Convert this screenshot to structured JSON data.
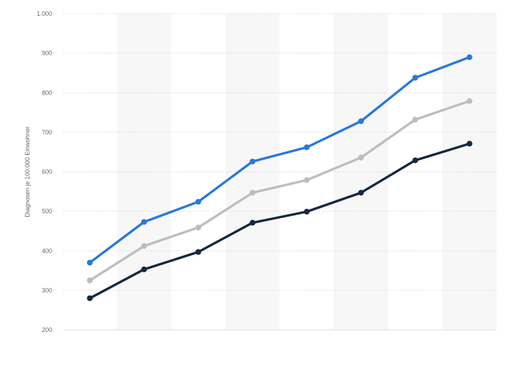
{
  "chart_data": {
    "type": "line",
    "ylabel": "Diagnosen je 100.000 Einwohner",
    "ylim": [
      200,
      1000
    ],
    "yticks": [
      200,
      300,
      400,
      500,
      600,
      700,
      800,
      900,
      1000
    ],
    "ytick_labels": [
      "200",
      "300",
      "400",
      "500",
      "600",
      "700",
      "800",
      "900",
      "1.000"
    ],
    "grid": true,
    "legend": "none",
    "series": [
      {
        "color": "#2c78d6",
        "values": [
          370,
          473,
          524,
          626,
          662,
          728,
          838,
          890
        ]
      },
      {
        "color": "#bdbdbd",
        "values": [
          325,
          412,
          459,
          547,
          579,
          636,
          732,
          779
        ]
      },
      {
        "color": "#152840",
        "values": [
          280,
          353,
          397,
          471,
          499,
          547,
          629,
          671
        ]
      }
    ],
    "colors": {
      "band": "#f7f7f7",
      "grid": "#dddddd",
      "text": "#666666"
    }
  }
}
